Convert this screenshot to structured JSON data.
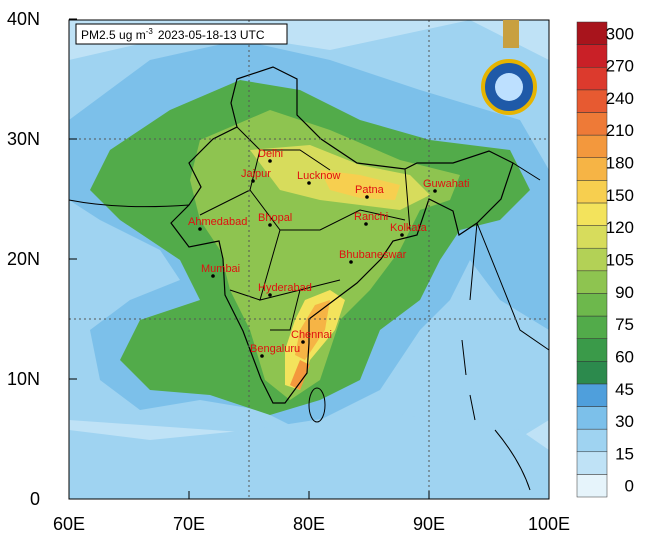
{
  "header": {
    "variable": "PM2.5 ug m",
    "exponent": "-3",
    "time": "2023-05-18-13 UTC"
  },
  "axes": {
    "x_labels": [
      "60E",
      "70E",
      "80E",
      "90E",
      "100E"
    ],
    "y_labels": [
      "0",
      "10N",
      "20N",
      "30N",
      "40N"
    ]
  },
  "legend": {
    "levels": [
      0,
      15,
      30,
      45,
      60,
      75,
      90,
      105,
      120,
      150,
      180,
      210,
      240,
      270,
      300
    ],
    "colors": [
      "#e6f4fb",
      "#bfe2f6",
      "#9fd3f1",
      "#7cc0ea",
      "#4f9fdc",
      "#2c8a4d",
      "#3a9a49",
      "#52ab4a",
      "#6db84c",
      "#8ec450",
      "#b3d156",
      "#d7dc5c",
      "#f3e35c",
      "#f7cf4f",
      "#f6b445",
      "#f3983d",
      "#ee7a37",
      "#e75a31",
      "#dc3a2d",
      "#c92027",
      "#a8141c"
    ]
  },
  "cities": [
    "Delhi",
    "Jaipur",
    "Lucknow",
    "Patna",
    "Guwahati",
    "Ahmedabad",
    "Bhopal",
    "Ranchi",
    "Kolkata",
    "Mumbai",
    "Bhubaneswar",
    "Hyderabad",
    "Chennai",
    "Bengaluru"
  ]
}
